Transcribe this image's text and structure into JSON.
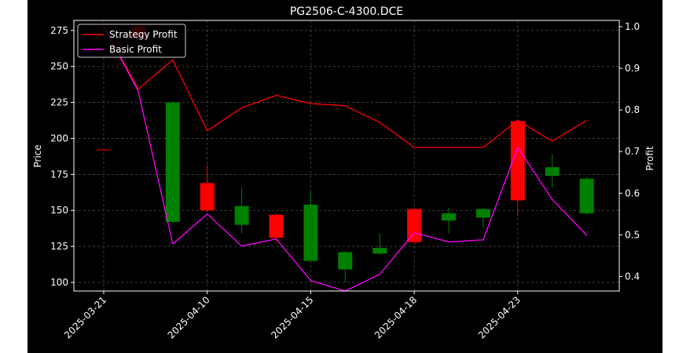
{
  "chart_data": {
    "type": "candlestick",
    "title": "PG2506-C-4300.DCE",
    "ylabel_left": "Price",
    "ylabel_right": "Profit",
    "ylim_left": [
      94,
      282
    ],
    "ylim_right": [
      0.365,
      1.015
    ],
    "yticks_left": [
      "100",
      "125",
      "150",
      "175",
      "200",
      "225",
      "250",
      "275"
    ],
    "yticks_right": [
      "0.4",
      "0.5",
      "0.6",
      "0.7",
      "0.8",
      "0.9",
      "1.0"
    ],
    "xtick_labels": [
      "2025-03-21",
      "2025-04-10",
      "2025-04-15",
      "2025-04-18",
      "2025-04-23"
    ],
    "xtick_index": [
      0,
      3,
      6,
      9,
      12
    ],
    "grid": true,
    "legend_position": "upper-left",
    "colors": {
      "background": "#000000",
      "up": "#ff0000",
      "down": "#008000",
      "strategy": "#ff0000",
      "basic": "#ff00ff",
      "grid": "#555555",
      "axis": "#ffffff"
    },
    "candles": [
      {
        "open": 192,
        "close": 192,
        "high": 192,
        "low": 192
      },
      {
        "open": 270,
        "close": 278,
        "high": 280,
        "low": 268
      },
      {
        "open": 225,
        "close": 142,
        "high": 226,
        "low": 141
      },
      {
        "open": 150,
        "close": 169,
        "high": 182,
        "low": 149
      },
      {
        "open": 153,
        "close": 140,
        "high": 166,
        "low": 134
      },
      {
        "open": 131,
        "close": 147,
        "high": 148,
        "low": 129
      },
      {
        "open": 154,
        "close": 115,
        "high": 163,
        "low": 114
      },
      {
        "open": 121,
        "close": 109,
        "high": 122,
        "low": 100
      },
      {
        "open": 124,
        "close": 120,
        "high": 134,
        "low": 119
      },
      {
        "open": 128,
        "close": 151,
        "high": 152,
        "low": 127
      },
      {
        "open": 148,
        "close": 143,
        "high": 152,
        "low": 134
      },
      {
        "open": 151,
        "close": 145,
        "high": 152,
        "low": 138
      },
      {
        "open": 157,
        "close": 212,
        "high": 213,
        "low": 146
      },
      {
        "open": 180,
        "close": 174,
        "high": 189,
        "low": 166
      },
      {
        "open": 172,
        "close": 148,
        "high": 173,
        "low": 147
      }
    ],
    "series": [
      {
        "name": "Strategy Profit",
        "values": [
          1.0,
          0.85,
          0.92,
          0.75,
          0.805,
          0.835,
          0.815,
          0.81,
          0.77,
          0.71,
          0.71,
          0.71,
          0.775,
          0.725,
          0.775
        ]
      },
      {
        "name": "Basic Profit",
        "values": [
          1.0,
          0.845,
          0.478,
          0.55,
          0.473,
          0.49,
          0.39,
          0.365,
          0.405,
          0.505,
          0.483,
          0.488,
          0.71,
          0.585,
          0.499
        ]
      }
    ]
  }
}
